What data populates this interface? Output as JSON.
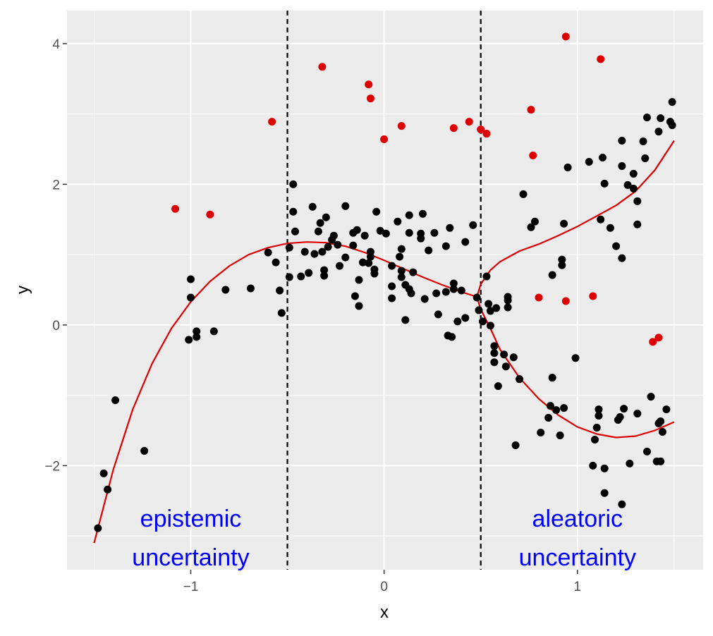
{
  "chart_data": {
    "type": "scatter",
    "title": "",
    "xlabel": "x",
    "ylabel": "y",
    "xlim": [
      -1.64,
      1.65
    ],
    "ylim": [
      -3.48,
      4.47
    ],
    "x_ticks": [
      -1,
      0,
      1
    ],
    "x_tick_labels": [
      "−1",
      "0",
      "1"
    ],
    "y_ticks": [
      -2,
      0,
      2,
      4
    ],
    "y_tick_labels": [
      "−2",
      "0",
      "2",
      "4"
    ],
    "grid": true,
    "background": "#EBEBEB",
    "colors": {
      "points": "#000000",
      "outliers": "#DD0000",
      "curve": "#DD0000",
      "annotation": "#0000FF",
      "vlines": "#000000"
    },
    "vlines": [
      -0.5,
      0.5
    ],
    "annotations": [
      {
        "x": -1.0,
        "y": -2.75,
        "text": "epistemic"
      },
      {
        "x": -1.0,
        "y": -3.3,
        "text": "uncertainty"
      },
      {
        "x": 1.0,
        "y": -2.75,
        "text": "aleatoric"
      },
      {
        "x": 1.0,
        "y": -3.3,
        "text": "uncertainty"
      }
    ],
    "points": [
      [
        -1.48,
        -2.89
      ],
      [
        -1.45,
        -2.11
      ],
      [
        -1.43,
        -2.34
      ],
      [
        -1.39,
        -1.07
      ],
      [
        -1.24,
        -1.79
      ],
      [
        -1.01,
        -0.21
      ],
      [
        -1.0,
        0.39
      ],
      [
        -1.0,
        0.65
      ],
      [
        -0.97,
        -0.09
      ],
      [
        -0.97,
        -0.17
      ],
      [
        -0.88,
        -0.09
      ],
      [
        -0.82,
        0.5
      ],
      [
        -0.69,
        0.52
      ],
      [
        -0.6,
        1.03
      ],
      [
        -0.56,
        0.89
      ],
      [
        -0.54,
        0.49
      ],
      [
        -0.53,
        0.17
      ],
      [
        -0.47,
        2.0
      ],
      [
        -0.47,
        1.61
      ],
      [
        -0.46,
        1.33
      ],
      [
        -0.49,
        1.1
      ],
      [
        -0.49,
        0.68
      ],
      [
        -0.43,
        0.69
      ],
      [
        -0.41,
        1.04
      ],
      [
        -0.39,
        0.74
      ],
      [
        -0.37,
        1.68
      ],
      [
        -0.36,
        1.01
      ],
      [
        -0.34,
        1.33
      ],
      [
        -0.33,
        1.45
      ],
      [
        -0.32,
        1.04
      ],
      [
        -0.31,
        0.78
      ],
      [
        -0.31,
        0.7
      ],
      [
        -0.3,
        1.53
      ],
      [
        -0.29,
        1.11
      ],
      [
        -0.27,
        1.21
      ],
      [
        -0.26,
        1.27
      ],
      [
        -0.24,
        1.14
      ],
      [
        -0.23,
        0.84
      ],
      [
        -0.2,
        0.96
      ],
      [
        -0.2,
        1.69
      ],
      [
        -0.16,
        1.31
      ],
      [
        -0.16,
        1.13
      ],
      [
        -0.15,
        0.41
      ],
      [
        -0.14,
        1.35
      ],
      [
        -0.13,
        0.64
      ],
      [
        -0.13,
        0.27
      ],
      [
        -0.11,
        0.89
      ],
      [
        -0.1,
        1.27
      ],
      [
        -0.08,
        0.88
      ],
      [
        -0.07,
        0.97
      ],
      [
        -0.07,
        1.04
      ],
      [
        -0.05,
        0.79
      ],
      [
        -0.05,
        0.73
      ],
      [
        -0.04,
        1.61
      ],
      [
        -0.02,
        1.34
      ],
      [
        0.01,
        1.3
      ],
      [
        0.04,
        0.55
      ],
      [
        0.04,
        0.84
      ],
      [
        0.04,
        0.38
      ],
      [
        0.07,
        1.47
      ],
      [
        0.08,
        0.97
      ],
      [
        0.09,
        1.08
      ],
      [
        0.09,
        0.77
      ],
      [
        0.09,
        0.68
      ],
      [
        0.11,
        0.57
      ],
      [
        0.11,
        0.07
      ],
      [
        0.13,
        1.56
      ],
      [
        0.13,
        1.31
      ],
      [
        0.13,
        0.51
      ],
      [
        0.14,
        0.45
      ],
      [
        0.15,
        0.75
      ],
      [
        0.19,
        1.3
      ],
      [
        0.19,
        1.23
      ],
      [
        0.2,
        1.58
      ],
      [
        0.21,
        0.37
      ],
      [
        0.23,
        1.06
      ],
      [
        0.26,
        1.31
      ],
      [
        0.27,
        0.45
      ],
      [
        0.28,
        0.15
      ],
      [
        0.32,
        0.47
      ],
      [
        0.32,
        1.12
      ],
      [
        0.33,
        -0.15
      ],
      [
        0.35,
        -0.17
      ],
      [
        0.34,
        1.38
      ],
      [
        0.36,
        0.51
      ],
      [
        0.36,
        0.59
      ],
      [
        0.38,
        0.05
      ],
      [
        0.4,
        0.49
      ],
      [
        0.42,
        1.18
      ],
      [
        0.42,
        0.1
      ],
      [
        0.46,
        1.42
      ],
      [
        0.48,
        0.39
      ],
      [
        0.49,
        0.21
      ],
      [
        0.51,
        0.05
      ],
      [
        0.53,
        0.69
      ],
      [
        0.54,
        0.3
      ],
      [
        0.55,
        0.2
      ],
      [
        0.55,
        -0.01
      ],
      [
        0.57,
        -0.3
      ],
      [
        0.57,
        -0.53
      ],
      [
        0.57,
        -0.4
      ],
      [
        0.58,
        0.24
      ],
      [
        0.59,
        -0.87
      ],
      [
        0.62,
        -0.42
      ],
      [
        0.63,
        -0.59
      ],
      [
        0.64,
        0.35
      ],
      [
        0.64,
        0.25
      ],
      [
        0.64,
        0.4
      ],
      [
        0.67,
        -0.46
      ],
      [
        0.68,
        -1.71
      ],
      [
        0.7,
        -0.77
      ],
      [
        0.72,
        1.86
      ],
      [
        0.76,
        1.39
      ],
      [
        0.78,
        1.47
      ],
      [
        0.81,
        -1.53
      ],
      [
        0.85,
        -1.32
      ],
      [
        0.86,
        -1.15
      ],
      [
        0.87,
        -0.75
      ],
      [
        0.87,
        0.71
      ],
      [
        0.89,
        -1.21
      ],
      [
        0.91,
        -1.57
      ],
      [
        0.92,
        0.93
      ],
      [
        0.92,
        0.85
      ],
      [
        0.93,
        1.44
      ],
      [
        0.93,
        -1.18
      ],
      [
        0.95,
        2.24
      ],
      [
        0.99,
        -0.47
      ],
      [
        1.06,
        2.32
      ],
      [
        1.08,
        -2.0
      ],
      [
        1.09,
        -1.63
      ],
      [
        1.1,
        -1.46
      ],
      [
        1.11,
        -1.2
      ],
      [
        1.11,
        -1.29
      ],
      [
        1.12,
        1.5
      ],
      [
        1.13,
        2.38
      ],
      [
        1.14,
        2.01
      ],
      [
        1.14,
        -2.04
      ],
      [
        1.14,
        -2.39
      ],
      [
        1.17,
        1.38
      ],
      [
        1.2,
        1.12
      ],
      [
        1.21,
        -1.35
      ],
      [
        1.22,
        -1.31
      ],
      [
        1.23,
        -2.55
      ],
      [
        1.23,
        0.95
      ],
      [
        1.23,
        2.26
      ],
      [
        1.23,
        2.62
      ],
      [
        1.24,
        -1.19
      ],
      [
        1.26,
        1.99
      ],
      [
        1.27,
        -1.97
      ],
      [
        1.29,
        1.94
      ],
      [
        1.29,
        2.15
      ],
      [
        1.31,
        -1.26
      ],
      [
        1.31,
        1.43
      ],
      [
        1.31,
        1.76
      ],
      [
        1.34,
        2.61
      ],
      [
        1.35,
        2.37
      ],
      [
        1.36,
        2.95
      ],
      [
        1.36,
        -1.8
      ],
      [
        1.38,
        -1.02
      ],
      [
        1.41,
        -1.94
      ],
      [
        1.42,
        -1.4
      ],
      [
        1.42,
        2.75
      ],
      [
        1.43,
        -1.94
      ],
      [
        1.43,
        2.94
      ],
      [
        1.43,
        -1.37
      ],
      [
        1.44,
        -1.52
      ],
      [
        1.46,
        -1.2
      ],
      [
        1.48,
        2.89
      ],
      [
        1.49,
        2.84
      ],
      [
        1.49,
        3.17
      ]
    ],
    "outliers": [
      [
        -1.08,
        1.65
      ],
      [
        -0.9,
        1.57
      ],
      [
        -0.58,
        2.89
      ],
      [
        -0.32,
        3.67
      ],
      [
        -0.08,
        3.42
      ],
      [
        -0.07,
        3.22
      ],
      [
        0.0,
        2.64
      ],
      [
        0.09,
        2.83
      ],
      [
        0.36,
        2.8
      ],
      [
        0.44,
        2.89
      ],
      [
        0.5,
        2.78
      ],
      [
        0.53,
        2.72
      ],
      [
        0.76,
        3.06
      ],
      [
        0.77,
        2.41
      ],
      [
        0.8,
        0.39
      ],
      [
        0.94,
        4.1
      ],
      [
        0.94,
        0.34
      ],
      [
        1.08,
        0.41
      ],
      [
        1.12,
        3.78
      ],
      [
        1.39,
        -0.24
      ],
      [
        1.42,
        -0.18
      ]
    ],
    "curves": [
      {
        "points": [
          [
            -1.5,
            -3.1
          ],
          [
            -1.4,
            -2.05
          ],
          [
            -1.3,
            -1.2
          ],
          [
            -1.2,
            -0.55
          ],
          [
            -1.1,
            -0.05
          ],
          [
            -1.0,
            0.33
          ],
          [
            -0.9,
            0.62
          ],
          [
            -0.8,
            0.84
          ],
          [
            -0.7,
            1.0
          ],
          [
            -0.6,
            1.1
          ],
          [
            -0.5,
            1.16
          ],
          [
            -0.4,
            1.18
          ],
          [
            -0.3,
            1.17
          ],
          [
            -0.2,
            1.12
          ],
          [
            -0.1,
            1.03
          ],
          [
            0.0,
            0.92
          ],
          [
            0.1,
            0.8
          ],
          [
            0.2,
            0.68
          ],
          [
            0.3,
            0.57
          ],
          [
            0.4,
            0.47
          ],
          [
            0.48,
            0.4
          ]
        ]
      },
      {
        "points": [
          [
            0.48,
            0.4
          ],
          [
            0.5,
            0.58
          ],
          [
            0.55,
            0.78
          ],
          [
            0.6,
            0.9
          ],
          [
            0.7,
            1.05
          ],
          [
            0.8,
            1.15
          ],
          [
            0.9,
            1.27
          ],
          [
            1.0,
            1.4
          ],
          [
            1.1,
            1.55
          ],
          [
            1.2,
            1.7
          ],
          [
            1.3,
            1.9
          ],
          [
            1.4,
            2.2
          ],
          [
            1.5,
            2.62
          ]
        ]
      },
      {
        "points": [
          [
            0.48,
            0.4
          ],
          [
            0.5,
            0.22
          ],
          [
            0.55,
            -0.05
          ],
          [
            0.6,
            -0.35
          ],
          [
            0.7,
            -0.75
          ],
          [
            0.8,
            -1.05
          ],
          [
            0.9,
            -1.28
          ],
          [
            1.0,
            -1.45
          ],
          [
            1.1,
            -1.55
          ],
          [
            1.2,
            -1.6
          ],
          [
            1.3,
            -1.58
          ],
          [
            1.4,
            -1.5
          ],
          [
            1.5,
            -1.38
          ]
        ]
      }
    ]
  }
}
